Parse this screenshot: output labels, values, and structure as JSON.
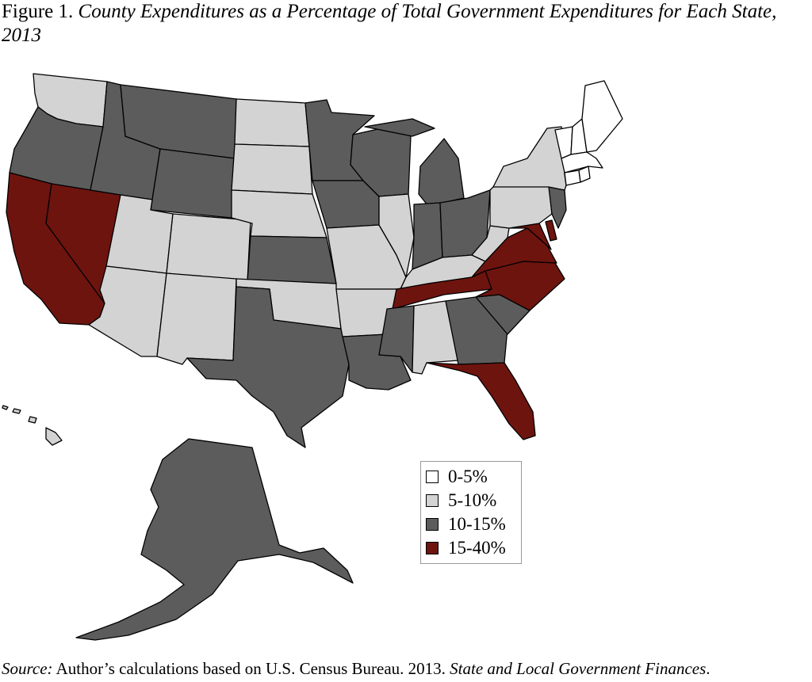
{
  "figure": {
    "label": "Figure 1.",
    "title": "County Expenditures as a Percentage of Total Government Expenditures for Each State, 2013"
  },
  "legend": {
    "items": [
      {
        "label": "0-5%",
        "color": "#ffffff"
      },
      {
        "label": "5-10%",
        "color": "#d3d3d3"
      },
      {
        "label": "10-15%",
        "color": "#5c5c5c"
      },
      {
        "label": "15-40%",
        "color": "#6e140f"
      }
    ]
  },
  "states": {
    "WA": 1,
    "OR": 2,
    "CA": 3,
    "NV": 3,
    "ID": 2,
    "MT": 2,
    "WY": 2,
    "UT": 1,
    "AZ": 1,
    "CO": 1,
    "NM": 1,
    "ND": 1,
    "SD": 1,
    "NE": 1,
    "KS": 2,
    "OK": 1,
    "TX": 2,
    "MN": 2,
    "IA": 2,
    "MO": 1,
    "AR": 1,
    "LA": 2,
    "WI": 2,
    "IL": 1,
    "MI": 2,
    "IN": 2,
    "OH": 2,
    "KY": 1,
    "TN": 3,
    "MS": 2,
    "AL": 1,
    "GA": 2,
    "FL": 3,
    "SC": 2,
    "NC": 3,
    "VA": 3,
    "WV": 1,
    "MD": 3,
    "DE": 3,
    "PA": 1,
    "NJ": 2,
    "NY": 1,
    "CT": 0,
    "RI": 0,
    "MA": 0,
    "VT": 0,
    "NH": 0,
    "ME": 0,
    "AK": 2,
    "HI": 1
  },
  "source": {
    "label": "Source:",
    "text": "Author’s calculations based on U.S. Census Bureau. 2013.",
    "publication": "State and Local Government Finances",
    "end": "."
  }
}
